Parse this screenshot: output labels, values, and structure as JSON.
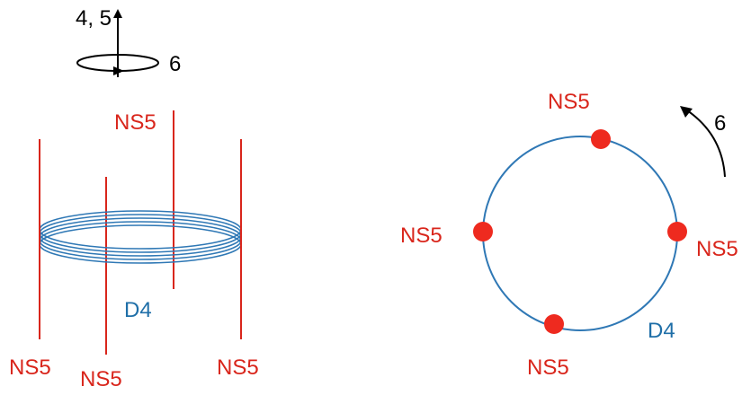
{
  "axes": {
    "vertical_label": "4, 5",
    "rotation_label": "6"
  },
  "left_panel": {
    "ns5_labels": [
      "NS5",
      "NS5",
      "NS5",
      "NS5"
    ],
    "d4_label": "D4"
  },
  "right_panel": {
    "ns5_labels": [
      "NS5",
      "NS5",
      "NS5",
      "NS5"
    ],
    "d4_label": "D4",
    "rotation_label": "6"
  },
  "colors": {
    "ns5": "#d9261c",
    "d4": "#1f6fa8",
    "axis": "#000000",
    "dot": "#ee2a1f"
  }
}
